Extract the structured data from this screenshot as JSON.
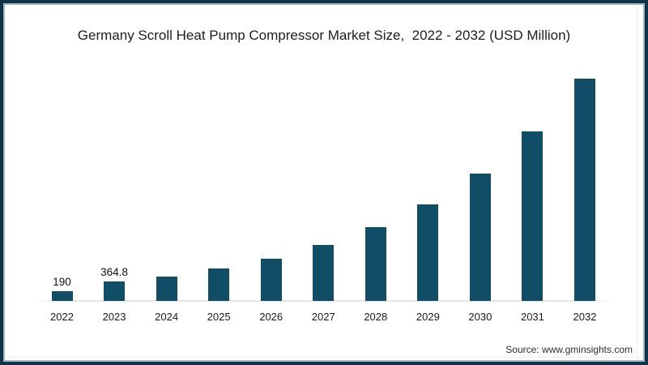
{
  "title": "Germany Scroll Heat Pump Compressor Market Size,  2022 - 2032 (USD Million)",
  "source": "Source: www.gminsights.com",
  "colors": {
    "bar": "#0f4e66",
    "frame_border": "#0f3349",
    "axis_line": "#e4e7e8",
    "title_text": "#1d1d1d",
    "source_text": "#2e2e2e"
  },
  "chart_data": {
    "type": "bar",
    "title": "Germany Scroll Heat Pump Compressor Market Size,  2022 - 2032 (USD Million)",
    "xlabel": "",
    "ylabel": "",
    "categories": [
      "2022",
      "2023",
      "2024",
      "2025",
      "2026",
      "2027",
      "2028",
      "2029",
      "2030",
      "2031",
      "2032"
    ],
    "values": [
      190,
      364.8,
      470,
      610,
      800,
      1070,
      1400,
      1830,
      2430,
      3220,
      4230
    ],
    "data_labels": [
      "190",
      "364.8",
      "",
      "",
      "",
      "",
      "",
      "",
      "",
      "",
      ""
    ],
    "ylim": [
      0,
      4500
    ],
    "grid": false,
    "legend": false,
    "y_axis_shown": false,
    "bar_color": "#0f4e66"
  }
}
